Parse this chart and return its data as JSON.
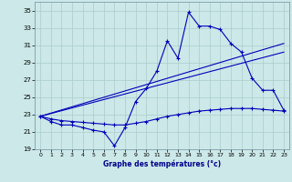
{
  "xlabel": "Graphe des températures (°c)",
  "background_color": "#cce8e8",
  "grid_color": "#aacccc",
  "line_color": "#0000bb",
  "ylim": [
    19,
    36
  ],
  "xlim": [
    -0.5,
    23.5
  ],
  "yticks": [
    19,
    21,
    23,
    25,
    27,
    29,
    31,
    33,
    35
  ],
  "xticks": [
    0,
    1,
    2,
    3,
    4,
    5,
    6,
    7,
    8,
    9,
    10,
    11,
    12,
    13,
    14,
    15,
    16,
    17,
    18,
    19,
    20,
    21,
    22,
    23
  ],
  "series1_x": [
    0,
    1,
    2,
    3,
    4,
    5,
    6,
    7,
    8,
    9,
    10,
    11,
    12,
    13,
    14,
    15,
    16,
    17,
    18,
    19,
    20,
    21,
    22,
    23
  ],
  "series1_y": [
    22.8,
    22.2,
    21.8,
    21.8,
    21.5,
    21.2,
    21.0,
    19.4,
    21.5,
    24.5,
    26.0,
    28.0,
    31.5,
    29.5,
    34.8,
    33.2,
    33.2,
    32.8,
    31.2,
    30.2,
    27.2,
    25.8,
    25.8,
    23.5
  ],
  "series2_x": [
    0,
    1,
    2,
    3,
    4,
    5,
    6,
    7,
    8,
    9,
    10,
    11,
    12,
    13,
    14,
    15,
    16,
    17,
    18,
    19,
    20,
    21,
    22,
    23
  ],
  "series2_y": [
    22.8,
    22.5,
    22.3,
    22.2,
    22.1,
    22.0,
    21.9,
    21.8,
    21.8,
    22.0,
    22.2,
    22.5,
    22.8,
    23.0,
    23.2,
    23.4,
    23.5,
    23.6,
    23.7,
    23.7,
    23.7,
    23.6,
    23.5,
    23.4
  ],
  "series3_x": [
    0,
    23
  ],
  "series3_y": [
    22.8,
    31.2
  ],
  "series4_x": [
    0,
    23
  ],
  "series4_y": [
    22.8,
    30.2
  ],
  "marker_style": "+",
  "marker_size": 3,
  "linewidth": 0.8,
  "xlabel_color": "#00008b",
  "xlabel_fontsize": 5.5,
  "tick_fontsize": 4.5,
  "ytick_fontsize": 5
}
